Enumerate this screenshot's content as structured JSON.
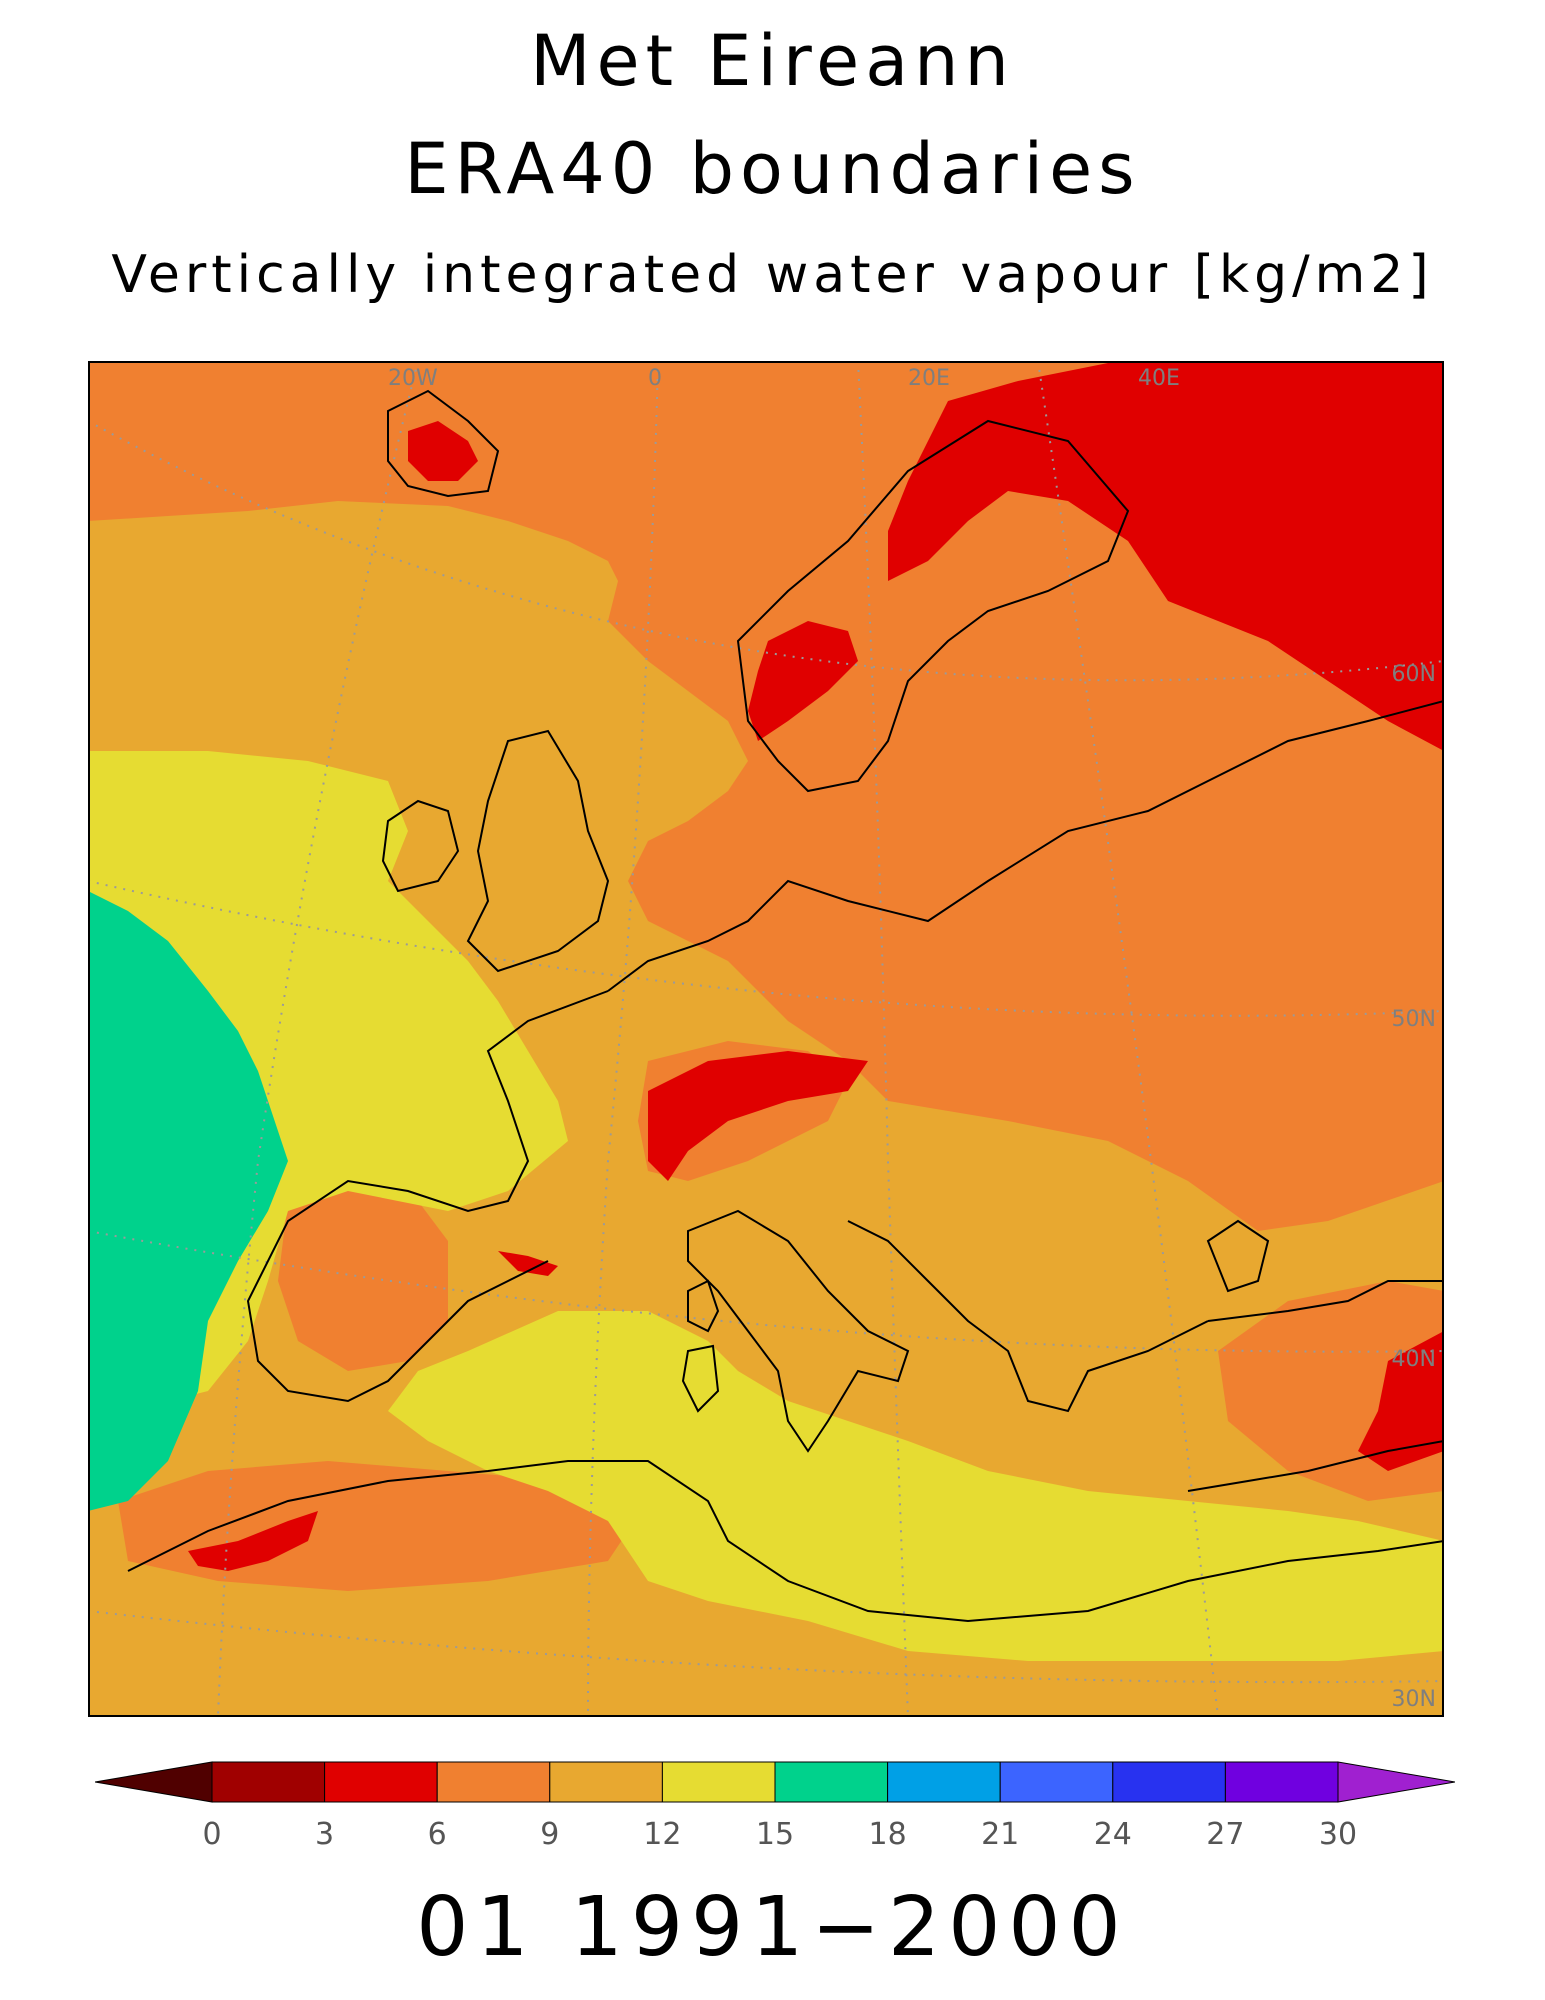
{
  "titles": {
    "line1": "Met Eireann",
    "line2": "ERA40 boundaries",
    "line3": "Vertically integrated water vapour [kg/m2]"
  },
  "period_label": "01  1991−2000",
  "map": {
    "variable": "Vertically integrated water vapour",
    "units": "kg/m2",
    "region": "Europe",
    "gridline_color": "#9a9a9a",
    "coastline_color": "#000000",
    "grid_labels": {
      "longitude": [
        "20W",
        "0",
        "20E",
        "40E"
      ],
      "latitude": [
        "60N",
        "50N",
        "40N",
        "30N"
      ]
    }
  },
  "colorbar": {
    "ticks": [
      "0",
      "3",
      "6",
      "9",
      "12",
      "15",
      "18",
      "21",
      "24",
      "27",
      "30"
    ],
    "under_color": "#500000",
    "over_color": "#a020d0",
    "bins": [
      {
        "from": 0,
        "to": 3,
        "color": "#a00000"
      },
      {
        "from": 3,
        "to": 6,
        "color": "#e00000"
      },
      {
        "from": 6,
        "to": 9,
        "color": "#f08030"
      },
      {
        "from": 9,
        "to": 12,
        "color": "#e8a830"
      },
      {
        "from": 12,
        "to": 15,
        "color": "#e6dc32"
      },
      {
        "from": 15,
        "to": 18,
        "color": "#00d28c"
      },
      {
        "from": 18,
        "to": 21,
        "color": "#00a0e6"
      },
      {
        "from": 21,
        "to": 24,
        "color": "#3c64ff"
      },
      {
        "from": 24,
        "to": 27,
        "color": "#2832f0"
      },
      {
        "from": 27,
        "to": 30,
        "color": "#7000e0"
      }
    ]
  }
}
